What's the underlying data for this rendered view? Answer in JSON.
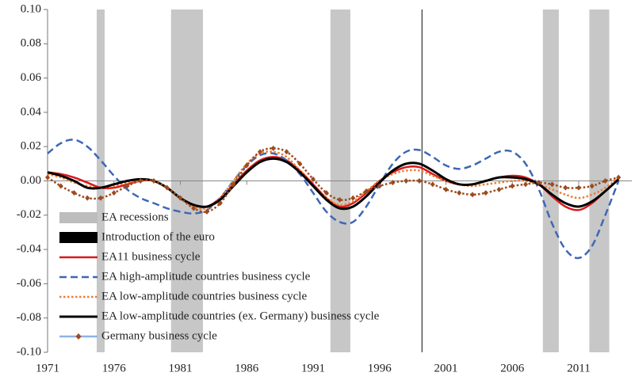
{
  "chart_data": {
    "type": "line",
    "x": [
      1971,
      1972,
      1973,
      1974,
      1975,
      1976,
      1977,
      1978,
      1979,
      1980,
      1981,
      1982,
      1983,
      1984,
      1985,
      1986,
      1987,
      1988,
      1989,
      1990,
      1991,
      1992,
      1993,
      1994,
      1995,
      1996,
      1997,
      1998,
      1999,
      2000,
      2001,
      2002,
      2003,
      2004,
      2005,
      2006,
      2007,
      2008,
      2009,
      2010,
      2011,
      2012,
      2013,
      2014
    ],
    "xlim": [
      1971,
      2015
    ],
    "xticks": [
      1971,
      1976,
      1981,
      1986,
      1991,
      1996,
      2001,
      2006,
      2011
    ],
    "ylim": [
      -0.1,
      0.1
    ],
    "yticks": [
      {
        "value": 0.1,
        "label": "0.10"
      },
      {
        "value": 0.08,
        "label": "0.08"
      },
      {
        "value": 0.06,
        "label": "0.06"
      },
      {
        "value": 0.04,
        "label": "0.04"
      },
      {
        "value": 0.02,
        "label": "0.02"
      },
      {
        "value": 0,
        "label": "0.00"
      },
      {
        "value": -0.02,
        "label": "-0.02"
      },
      {
        "value": -0.04,
        "label": "-0.04"
      },
      {
        "value": -0.06,
        "label": "-0.06"
      },
      {
        "value": -0.08,
        "label": "-0.08"
      },
      {
        "value": -0.1,
        "label": "-0.10"
      }
    ],
    "shaded_regions": {
      "name": "EA recessions",
      "color": "#bdbdbd",
      "ranges": [
        [
          1974.7,
          1975.3
        ],
        [
          1980.3,
          1982.7
        ],
        [
          1992.3,
          1993.8
        ],
        [
          2008.3,
          2009.5
        ],
        [
          2011.8,
          2013.3
        ]
      ]
    },
    "vline": {
      "name": "Introduction of the euro",
      "x": 1999.2,
      "color": "#333333"
    },
    "legend": "lower left",
    "series": [
      {
        "name": "EA11 business cycle",
        "color": "#d7191c",
        "style": "solid",
        "values": [
          0.005,
          0.004,
          0.002,
          -0.001,
          -0.004,
          -0.004,
          -0.002,
          0.0,
          0.0,
          -0.004,
          -0.01,
          -0.014,
          -0.015,
          -0.01,
          -0.002,
          0.006,
          0.012,
          0.014,
          0.012,
          0.006,
          -0.002,
          -0.01,
          -0.015,
          -0.013,
          -0.007,
          0.0,
          0.005,
          0.008,
          0.008,
          0.004,
          0.0,
          -0.002,
          -0.002,
          0.0,
          0.002,
          0.003,
          0.002,
          -0.002,
          -0.009,
          -0.015,
          -0.017,
          -0.013,
          -0.006,
          0.001
        ]
      },
      {
        "name": "EA high-amplitude countries business cycle",
        "color": "#3e67b5",
        "style": "dashed",
        "values": [
          0.016,
          0.022,
          0.024,
          0.02,
          0.012,
          0.003,
          -0.005,
          -0.01,
          -0.013,
          -0.016,
          -0.018,
          -0.019,
          -0.017,
          -0.01,
          0.0,
          0.009,
          0.015,
          0.016,
          0.012,
          0.004,
          -0.007,
          -0.018,
          -0.024,
          -0.024,
          -0.015,
          -0.002,
          0.01,
          0.017,
          0.018,
          0.014,
          0.009,
          0.007,
          0.009,
          0.013,
          0.017,
          0.017,
          0.01,
          -0.005,
          -0.025,
          -0.04,
          -0.045,
          -0.038,
          -0.02,
          0.0
        ]
      },
      {
        "name": "EA low-amplitude countries business cycle",
        "color": "#ee7d31",
        "style": "dotted",
        "values": [
          0.004,
          0.002,
          -0.001,
          -0.003,
          -0.004,
          -0.003,
          -0.001,
          0.0,
          0.0,
          -0.004,
          -0.01,
          -0.015,
          -0.016,
          -0.01,
          0.0,
          0.01,
          0.016,
          0.017,
          0.014,
          0.006,
          -0.003,
          -0.01,
          -0.014,
          -0.012,
          -0.006,
          0.0,
          0.004,
          0.006,
          0.006,
          0.003,
          0.0,
          -0.002,
          -0.003,
          -0.002,
          -0.001,
          0.0,
          0.0,
          -0.002,
          -0.005,
          -0.008,
          -0.01,
          -0.008,
          -0.004,
          0.002
        ]
      },
      {
        "name": "EA low-amplitude countries (ex. Germany) business cycle",
        "color": "#000000",
        "style": "solid",
        "values": [
          0.005,
          0.003,
          0.0,
          -0.004,
          -0.004,
          -0.002,
          0.0,
          0.001,
          0.0,
          -0.004,
          -0.01,
          -0.014,
          -0.015,
          -0.011,
          -0.003,
          0.005,
          0.011,
          0.013,
          0.011,
          0.005,
          -0.003,
          -0.011,
          -0.016,
          -0.015,
          -0.009,
          -0.001,
          0.006,
          0.01,
          0.01,
          0.006,
          0.001,
          -0.002,
          -0.002,
          0.0,
          0.002,
          0.002,
          0.001,
          -0.002,
          -0.008,
          -0.013,
          -0.015,
          -0.012,
          -0.006,
          0.001
        ]
      },
      {
        "name": "Germany business cycle",
        "color": "#9c4a1e",
        "style": "dotted",
        "marker": "diamond",
        "values": [
          0.002,
          -0.003,
          -0.007,
          -0.01,
          -0.01,
          -0.007,
          -0.003,
          0.0,
          0.0,
          -0.004,
          -0.01,
          -0.016,
          -0.018,
          -0.013,
          -0.002,
          0.009,
          0.017,
          0.019,
          0.017,
          0.01,
          0.001,
          -0.007,
          -0.011,
          -0.01,
          -0.006,
          -0.003,
          -0.001,
          0.0,
          0.0,
          -0.002,
          -0.005,
          -0.007,
          -0.008,
          -0.007,
          -0.005,
          -0.003,
          -0.002,
          -0.001,
          -0.002,
          -0.004,
          -0.004,
          -0.003,
          0.0,
          0.002
        ]
      }
    ]
  }
}
